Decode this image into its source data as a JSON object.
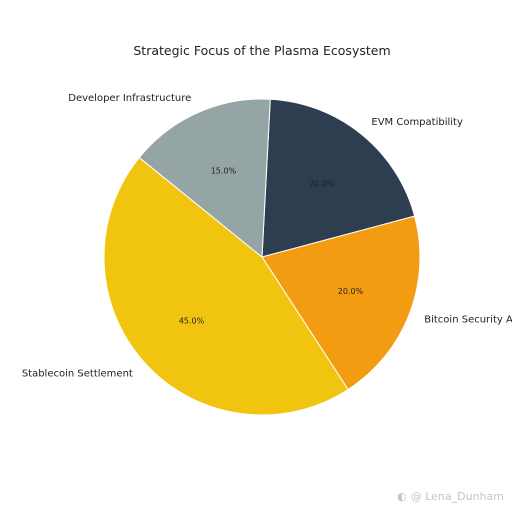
{
  "chart_data": {
    "type": "pie",
    "title": "Strategic Focus of the Plasma Ecosystem",
    "start_angle_deg": 87,
    "direction": "clockwise",
    "slices": [
      {
        "label": "EVM Compatibility",
        "value": 20.0,
        "pct_label": "20.0%",
        "color": "#2c3e50"
      },
      {
        "label": "Bitcoin Security Ar",
        "value": 20.0,
        "pct_label": "20.0%",
        "color": "#f39c12"
      },
      {
        "label": "Stablecoin Settlement",
        "value": 45.0,
        "pct_label": "45.0%",
        "color": "#f1c40f"
      },
      {
        "label": "Developer Infrastructure",
        "value": 15.0,
        "pct_label": "15.0%",
        "color": "#95a5a6"
      }
    ]
  },
  "watermark": {
    "icon": "weibo-icon",
    "text": "@ Lena_Dunham"
  }
}
